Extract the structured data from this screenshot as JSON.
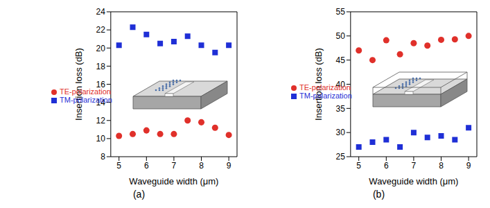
{
  "chart_data": [
    {
      "type": "scatter",
      "title": "(a)",
      "xlabel": "Waveguide width (μm)",
      "ylabel": "Insertion loss (dB)",
      "x": [
        5,
        5.5,
        6,
        6.5,
        7,
        7.5,
        8,
        8.5,
        9
      ],
      "xlim": [
        4.7,
        9.3
      ],
      "xticks": [
        5,
        6,
        7,
        8,
        9
      ],
      "ylim": [
        8,
        24
      ],
      "yticks": [
        8,
        10,
        12,
        14,
        16,
        18,
        20,
        22,
        24
      ],
      "grid": false,
      "legend": "left",
      "series": [
        {
          "name": "TM-polarization",
          "color": "#1f2fd6",
          "marker": "square",
          "values": [
            20.3,
            22.3,
            21.5,
            20.5,
            20.7,
            21.3,
            20.3,
            19.5,
            20.3
          ]
        },
        {
          "name": "TE-polarization",
          "color": "#e0302a",
          "marker": "circle",
          "values": [
            10.3,
            10.5,
            10.9,
            10.5,
            10.5,
            12.0,
            11.8,
            11.2,
            10.4
          ]
        }
      ]
    },
    {
      "type": "scatter",
      "title": "(b)",
      "xlabel": "Waveguide width (μm)",
      "ylabel": "Insertion loss (dB)",
      "x": [
        5,
        5.5,
        6,
        6.5,
        7,
        7.5,
        8,
        8.5,
        9
      ],
      "xlim": [
        4.7,
        9.3
      ],
      "xticks": [
        5,
        6,
        7,
        8,
        9
      ],
      "ylim": [
        25,
        55
      ],
      "yticks": [
        25,
        30,
        35,
        40,
        45,
        50,
        55
      ],
      "grid": false,
      "legend": "left",
      "series": [
        {
          "name": "TM-polarization",
          "color": "#1f2fd6",
          "marker": "square",
          "values": [
            27,
            28,
            28.5,
            27,
            30,
            29,
            29.3,
            28.5,
            31
          ]
        },
        {
          "name": "TE-polarization",
          "color": "#e0302a",
          "marker": "circle",
          "values": [
            47,
            45,
            49.1,
            46.2,
            48.5,
            48,
            49.2,
            49.3,
            50
          ]
        }
      ]
    }
  ]
}
